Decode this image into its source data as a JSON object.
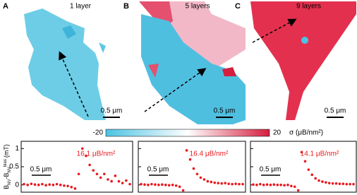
{
  "panels": [
    {
      "letter": "A",
      "label": "1 layer",
      "scale_bar": "0.5 μm"
    },
    {
      "letter": "B",
      "label": "5 layers",
      "scale_bar": "0.5 μm"
    },
    {
      "letter": "C",
      "label": "9 layers",
      "scale_bar": "0.5 μm"
    }
  ],
  "colorbar": {
    "min": -20,
    "max": 20,
    "label": "σ (μB/nm²)",
    "colors": [
      "#4cc3e2",
      "#ffffff",
      "#d41f3e"
    ]
  },
  "chart_data": {
    "type": "scatter",
    "y_label_parts": [
      {
        "text": "B",
        "style": "normal"
      },
      {
        "text": "NV",
        "style": "sub"
      },
      {
        "text": "-B",
        "style": "normal"
      },
      {
        "text": "NV",
        "style": "sub"
      },
      {
        "text": "bias",
        "style": "sup"
      },
      {
        "text": "(mT)",
        "style": "normal"
      }
    ],
    "ylim": [
      -0.2,
      1.2
    ],
    "yticks": [
      0,
      0.5,
      1
    ],
    "color": "#e8191f",
    "profiles": [
      {
        "annotation": "16.1 μB/nm²",
        "scale_bar": "0.5 μm",
        "values": [
          0.02,
          0.0,
          0.03,
          0.01,
          0.0,
          0.02,
          -0.01,
          0.01,
          0.0,
          0.02,
          0.0,
          -0.02,
          -0.03,
          -0.06,
          -0.1,
          0.3,
          1.0,
          0.8,
          0.55,
          0.4,
          0.3,
          0.2,
          0.3,
          0.15,
          0.1,
          0.25,
          0.1,
          0.05,
          0.12,
          0.02
        ]
      },
      {
        "annotation": "16.4 μB/nm²",
        "scale_bar": "0.5 μm",
        "values": [
          0.02,
          0.01,
          0.0,
          0.02,
          0.01,
          0.0,
          0.01,
          0.0,
          -0.01,
          0.0,
          -0.02,
          -0.05,
          -0.15,
          0.95,
          0.7,
          0.45,
          0.3,
          0.2,
          0.15,
          0.1,
          0.08,
          0.06,
          0.05,
          0.04,
          0.05,
          0.03,
          0.02,
          0.03,
          0.02,
          0.02
        ]
      },
      {
        "annotation": "14.1 μB/nm²",
        "scale_bar": "0.5 μm",
        "values": [
          0.01,
          0.0,
          0.02,
          0.0,
          0.01,
          0.0,
          0.01,
          0.0,
          0.0,
          -0.01,
          0.0,
          -0.03,
          -0.05,
          -0.15,
          0.9,
          0.65,
          0.42,
          0.28,
          0.18,
          0.12,
          0.09,
          0.07,
          0.05,
          0.04,
          0.04,
          0.03,
          0.03,
          0.02,
          0.02,
          0.02
        ]
      }
    ]
  }
}
